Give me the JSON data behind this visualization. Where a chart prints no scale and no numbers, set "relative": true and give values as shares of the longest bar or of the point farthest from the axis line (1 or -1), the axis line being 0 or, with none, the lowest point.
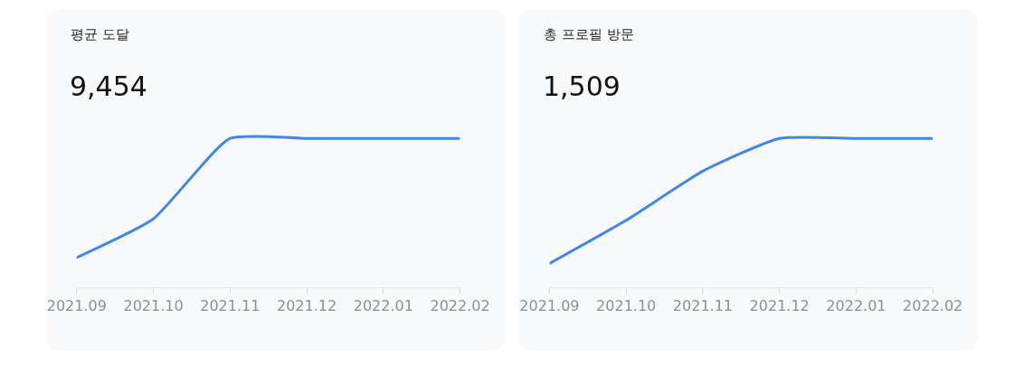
{
  "chart_data": [
    {
      "type": "line",
      "title": "평균 도달",
      "subtitle": "9,454",
      "relative": true,
      "categories": [
        "2021.09",
        "2021.10",
        "2021.11",
        "2021.12",
        "2022.01",
        "2022.02"
      ],
      "series": [
        {
          "color": "#3f87e5",
          "values": [
            0.2,
            0.46,
            1,
            1,
            1,
            1
          ]
        }
      ]
    },
    {
      "type": "line",
      "title": "총 프로필 방문",
      "subtitle": "1,509",
      "relative": true,
      "categories": [
        "2021.09",
        "2021.10",
        "2021.11",
        "2021.12",
        "2022.01",
        "2022.02"
      ],
      "series": [
        {
          "color": "#3f87e5",
          "values": [
            0.16,
            0.45,
            0.78,
            1,
            1,
            1
          ]
        }
      ]
    }
  ]
}
